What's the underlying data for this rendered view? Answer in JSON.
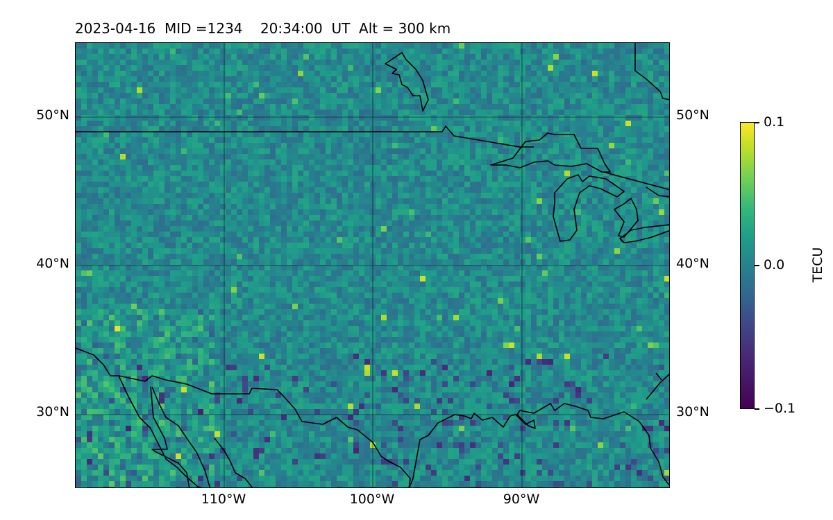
{
  "title": "2023-04-16  MID =1234    20:34:00  UT  Alt = 300 km",
  "map": {
    "lat_labels": [
      "50°N",
      "40°N",
      "30°N"
    ],
    "lon_labels": [
      "110°W",
      "100°W",
      "90°W"
    ],
    "lon_range": [
      -120,
      -80
    ],
    "lat_range": [
      25,
      55
    ],
    "colormap": "viridis"
  },
  "colorbar": {
    "label": "TECU",
    "ticks": [
      "0.1",
      "0.0",
      "−0.1"
    ],
    "range": [
      -0.1,
      0.1
    ]
  }
}
